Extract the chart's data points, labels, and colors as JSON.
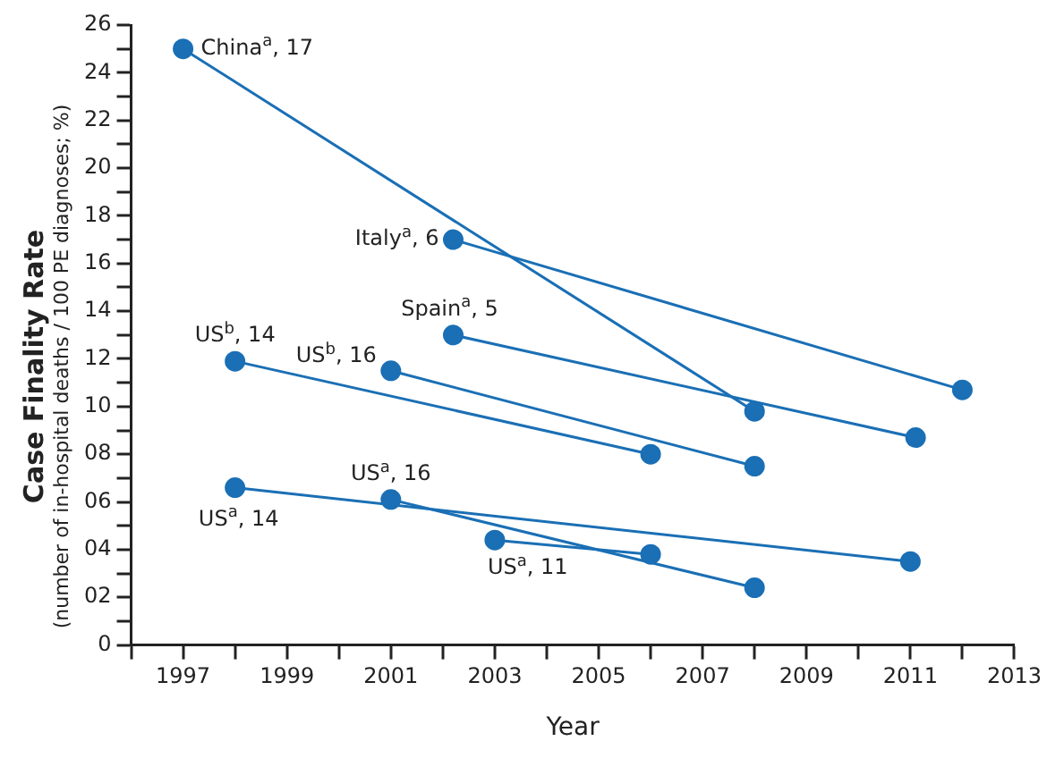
{
  "chart_data": {
    "type": "line",
    "xlabel": "Year",
    "ylabel": "Case Finality Rate\n(number of in-hospital deaths / 100 PE diagnoses; %)",
    "marker": "circle",
    "line_style": "solid",
    "grid": false,
    "legend": false,
    "xlim": [
      1996,
      2013
    ],
    "xticks": [
      {
        "value": 1996,
        "label": null
      },
      1997,
      {
        "value": 1998,
        "label": null
      },
      1999,
      {
        "value": 2000,
        "label": null
      },
      2001,
      {
        "value": 2002,
        "label": null
      },
      2003,
      {
        "value": 2004,
        "label": null
      },
      2005,
      {
        "value": 2006,
        "label": null
      },
      2007,
      {
        "value": 2008,
        "label": null
      },
      2009,
      {
        "value": 2010,
        "label": null
      },
      2011,
      {
        "value": 2012,
        "label": null
      },
      2013
    ],
    "ylim": [
      0,
      26
    ],
    "yticks": [
      0,
      {
        "value": 1,
        "label": null
      },
      {
        "value": 2,
        "label": "02"
      },
      {
        "value": 3,
        "label": null
      },
      {
        "value": 4,
        "label": "04"
      },
      {
        "value": 5,
        "label": null
      },
      {
        "value": 6,
        "label": "06"
      },
      {
        "value": 7,
        "label": null
      },
      {
        "value": 8,
        "label": "08"
      },
      {
        "value": 9,
        "label": null
      },
      10,
      {
        "value": 11,
        "label": null
      },
      12,
      {
        "value": 13,
        "label": null
      },
      14,
      {
        "value": 15,
        "label": null
      },
      16,
      {
        "value": 17,
        "label": null
      },
      18,
      {
        "value": 19,
        "label": null
      },
      20,
      {
        "value": 21,
        "label": null
      },
      22,
      {
        "value": 23,
        "label": null
      },
      24,
      {
        "value": 25,
        "label": null
      },
      26
    ],
    "series": [
      {
        "name": "China$^{a}$, 17",
        "color": "#1a6fb5",
        "x": [
          1997,
          2008
        ],
        "values": [
          25.0,
          9.8
        ]
      },
      {
        "name": "Italy$^{a}$, 6",
        "color": "#1a6fb5",
        "x": [
          2002.2,
          2012
        ],
        "values": [
          17.0,
          10.7
        ]
      },
      {
        "name": "Spain$^{a}$, 5",
        "color": "#1a6fb5",
        "x": [
          2002.2,
          2011.1
        ],
        "values": [
          13.0,
          8.7
        ]
      },
      {
        "name": "US$^{b}$, 14",
        "color": "#1a6fb5",
        "x": [
          1998,
          2006
        ],
        "values": [
          11.9,
          8.0
        ]
      },
      {
        "name": "US$^{b}$, 16",
        "color": "#1a6fb5",
        "x": [
          2001,
          2008
        ],
        "values": [
          11.5,
          7.5
        ]
      },
      {
        "name": "US$^{a}$, 14",
        "color": "#1a6fb5",
        "x": [
          1998,
          2011
        ],
        "values": [
          6.6,
          3.5
        ]
      },
      {
        "name": "US$^{a}$, 16",
        "color": "#1a6fb5",
        "x": [
          2001,
          2008
        ],
        "values": [
          6.1,
          2.4
        ]
      },
      {
        "name": "US$^{a}$, 11",
        "color": "#1a6fb5",
        "x": [
          2003,
          2006
        ],
        "values": [
          4.4,
          3.8
        ]
      }
    ]
  }
}
